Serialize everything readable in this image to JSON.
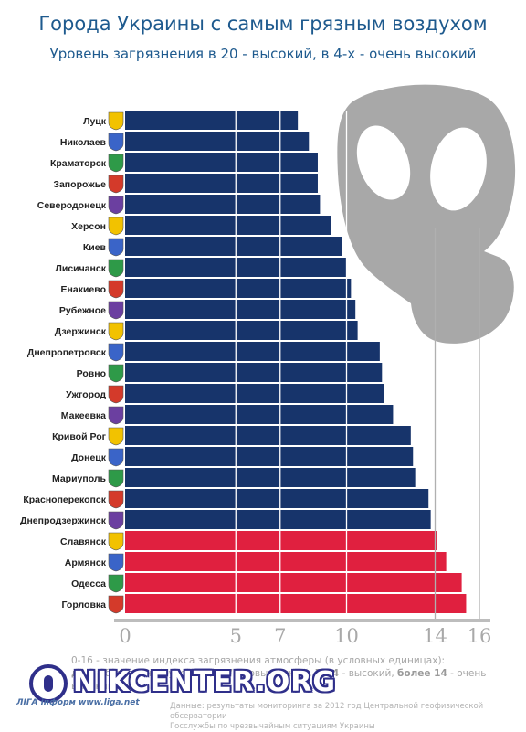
{
  "title": "Города Украины с самым грязным воздухом",
  "subtitle": "Уровень загрязнения в 20 - высокий, в 4-х - очень высокий",
  "colors": {
    "high": "#17346b",
    "very_high": "#e0203f",
    "gas_mask": "#a8a8a8",
    "title": "#1e5a8e"
  },
  "chart_data": {
    "type": "bar",
    "orientation": "horizontal",
    "xlim": [
      0,
      16
    ],
    "x_ticks": [
      0,
      5,
      7,
      10,
      14,
      16
    ],
    "categories": [
      "Луцк",
      "Николаев",
      "Краматорск",
      "Запорожье",
      "Северодонецк",
      "Херсон",
      "Киев",
      "Лисичанск",
      "Енакиево",
      "Рубежное",
      "Дзержинск",
      "Днепропетровск",
      "Ровно",
      "Ужгород",
      "Макеевка",
      "Кривой Рог",
      "Донецк",
      "Мариуполь",
      "Красноперекопск",
      "Днепродзержинск",
      "Славянск",
      "Армянск",
      "Одесса",
      "Горловка"
    ],
    "values": [
      7.8,
      8.3,
      8.7,
      8.7,
      8.8,
      9.3,
      9.8,
      10.0,
      10.2,
      10.4,
      10.5,
      11.5,
      11.6,
      11.7,
      12.1,
      12.9,
      13.0,
      13.1,
      13.7,
      13.8,
      14.1,
      14.5,
      15.2,
      15.4
    ],
    "levels": [
      "high",
      "high",
      "high",
      "high",
      "high",
      "high",
      "high",
      "high",
      "high",
      "high",
      "high",
      "high",
      "high",
      "high",
      "high",
      "high",
      "high",
      "high",
      "high",
      "high",
      "very_high",
      "very_high",
      "very_high",
      "very_high"
    ]
  },
  "legend_text": {
    "line1": "0-16 - значение индекса загрязнения атмосферы (в условных единицах):",
    "line2_a": "до 5",
    "line2_b": " - безопасный уровень, ",
    "line2_c": "5-7",
    "line2_d": " - повышенный, ",
    "line2_e": "7-14",
    "line2_f": " - высокий, ",
    "line2_g": "более 14",
    "line2_h": " - очень высокий"
  },
  "watermark": "NIKCENTER.ORG",
  "credit": "ЛІГА інформ  www.liga.net",
  "source": {
    "line1": "Данные: результаты мониторинга за 2012 год Центральной геофизической обсерватории",
    "line2": "Госслужбы по чрезвычайным ситуациям Украины"
  }
}
